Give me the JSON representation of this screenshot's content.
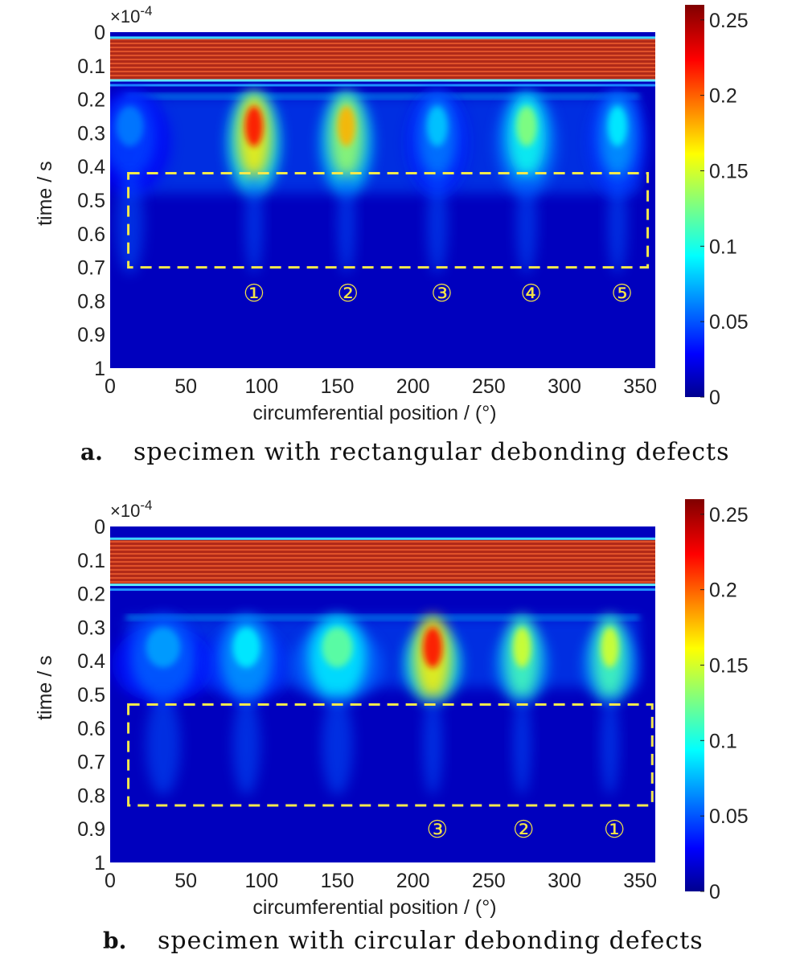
{
  "chart_data": [
    {
      "type": "heatmap",
      "panel_label": "a.",
      "caption": "specimen with rectangular debonding defects",
      "xlabel": "circumferential position / (°)",
      "ylabel": "time / s",
      "y_multiplier": "×10",
      "y_multiplier_exp": "-4",
      "xlim": [
        0,
        360
      ],
      "ylim": [
        0,
        1
      ],
      "x_ticks": [
        "0",
        "50",
        "100",
        "150",
        "200",
        "250",
        "300",
        "350"
      ],
      "y_ticks": [
        "0",
        "0.1",
        "0.2",
        "0.3",
        "0.4",
        "0.5",
        "0.6",
        "0.7",
        "0.8",
        "0.9",
        "1"
      ],
      "colorbar": {
        "min": 0,
        "max": 0.26,
        "ticks": [
          "0",
          "0.05",
          "0.1",
          "0.15",
          "0.2",
          "0.25"
        ]
      },
      "incident_band": {
        "t_start": 0.02,
        "t_end": 0.14,
        "value": 0.23
      },
      "scatter_onset": 0.19,
      "groups": [
        {
          "x": 13,
          "width": 40,
          "peak": 0.06
        },
        {
          "x": 95,
          "width": 26,
          "peak": 0.22
        },
        {
          "x": 156,
          "width": 26,
          "peak": 0.18
        },
        {
          "x": 216,
          "width": 30,
          "peak": 0.08
        },
        {
          "x": 275,
          "width": 30,
          "peak": 0.13
        },
        {
          "x": 335,
          "width": 28,
          "peak": 0.09
        }
      ],
      "highlight_box": {
        "x0": 12,
        "x1": 355,
        "t0": 0.42,
        "t1": 0.7
      },
      "defect_markers": [
        {
          "label": "①",
          "x": 95,
          "t": 0.775
        },
        {
          "label": "②",
          "x": 157,
          "t": 0.775
        },
        {
          "label": "③",
          "x": 219,
          "t": 0.775
        },
        {
          "label": "④",
          "x": 278,
          "t": 0.775
        },
        {
          "label": "⑤",
          "x": 338,
          "t": 0.775
        }
      ]
    },
    {
      "type": "heatmap",
      "panel_label": "b.",
      "caption": "specimen with circular debonding defects",
      "xlabel": "circumferential position / (°)",
      "ylabel": "time / s",
      "y_multiplier": "×10",
      "y_multiplier_exp": "-4",
      "xlim": [
        0,
        360
      ],
      "ylim": [
        0,
        1
      ],
      "x_ticks": [
        "0",
        "50",
        "100",
        "150",
        "200",
        "250",
        "300",
        "350"
      ],
      "y_ticks": [
        "0",
        "0.1",
        "0.2",
        "0.3",
        "0.4",
        "0.5",
        "0.6",
        "0.7",
        "0.8",
        "0.9",
        "1"
      ],
      "colorbar": {
        "min": 0,
        "max": 0.26,
        "ticks": [
          "0",
          "0.05",
          "0.1",
          "0.15",
          "0.2",
          "0.25"
        ]
      },
      "incident_band": {
        "t_start": 0.04,
        "t_end": 0.17,
        "value": 0.23
      },
      "scatter_onset": 0.27,
      "groups": [
        {
          "x": 35,
          "width": 50,
          "peak": 0.07
        },
        {
          "x": 90,
          "width": 40,
          "peak": 0.09
        },
        {
          "x": 150,
          "width": 45,
          "peak": 0.12
        },
        {
          "x": 213,
          "width": 28,
          "peak": 0.22
        },
        {
          "x": 272,
          "width": 26,
          "peak": 0.15
        },
        {
          "x": 330,
          "width": 26,
          "peak": 0.15
        }
      ],
      "highlight_box": {
        "x0": 12,
        "x1": 358,
        "t0": 0.53,
        "t1": 0.83
      },
      "defect_markers": [
        {
          "label": "③",
          "x": 216,
          "t": 0.9
        },
        {
          "label": "②",
          "x": 273,
          "t": 0.9
        },
        {
          "label": "①",
          "x": 333,
          "t": 0.9
        }
      ]
    }
  ]
}
